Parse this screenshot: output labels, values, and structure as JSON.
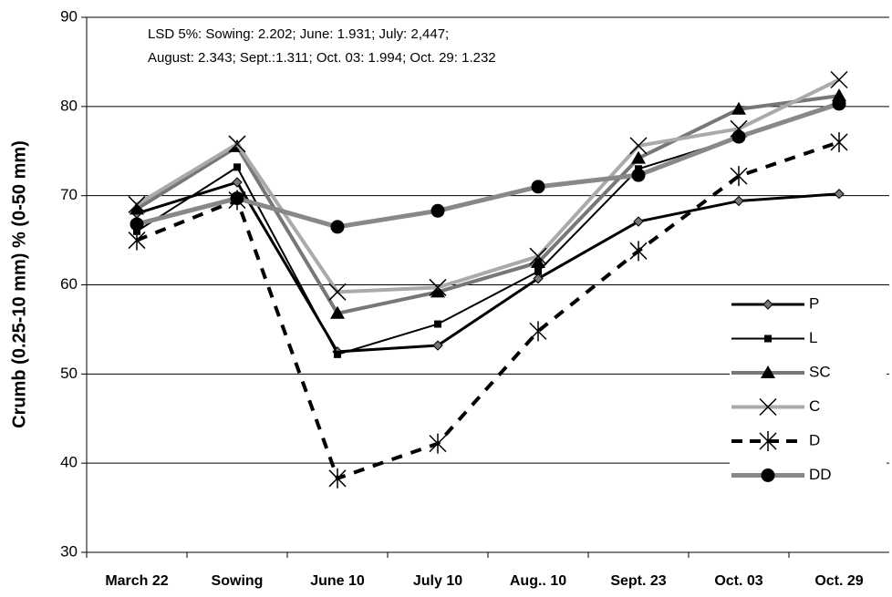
{
  "chart_data": {
    "type": "line",
    "annotation": [
      "LSD 5%:  Sowing: 2.202; June: 1.931; July: 2,447;",
      "August: 2.343; Sept.:1.311; Oct. 03: 1.994; Oct. 29: 1.232"
    ],
    "ylabel": "Crumb (0.25-10 mm) % (0-50 mm)",
    "categories": [
      "March 22",
      "Sowing",
      "June 10",
      "July 10",
      "Aug.. 10",
      "Sept. 23",
      "Oct. 03",
      "Oct. 29"
    ],
    "ylim": [
      30,
      90
    ],
    "yticks": [
      30,
      40,
      50,
      60,
      70,
      80,
      90
    ],
    "grid": true,
    "legend": "right",
    "series": [
      {
        "name": "P",
        "color": "#000000",
        "width": 3,
        "dash": "none",
        "marker": "diamond",
        "values": [
          68,
          71.5,
          52.5,
          53.2,
          60.7,
          67.1,
          69.4,
          70.2
        ]
      },
      {
        "name": "L",
        "color": "#000000",
        "width": 2,
        "dash": "none",
        "marker": "square",
        "values": [
          66,
          73.2,
          52.2,
          55.6,
          61.5,
          73,
          76.5,
          80.5
        ]
      },
      {
        "name": "SC",
        "color": "#777777",
        "width": 4,
        "dash": "none",
        "marker": "triangle",
        "values": [
          68.5,
          75.5,
          56.8,
          59.2,
          62.5,
          74.2,
          79.7,
          81.2
        ]
      },
      {
        "name": "C",
        "color": "#aaaaaa",
        "width": 4,
        "dash": "none",
        "marker": "x",
        "values": [
          69,
          75.8,
          59.2,
          59.7,
          63.2,
          75.6,
          77.5,
          83
        ]
      },
      {
        "name": "D",
        "color": "#000000",
        "width": 4,
        "dash": "12 10",
        "marker": "star",
        "values": [
          65,
          69.5,
          38.3,
          42.2,
          54.8,
          63.8,
          72.2,
          76
        ]
      },
      {
        "name": "DD",
        "color": "#888888",
        "width": 5,
        "dash": "none",
        "marker": "circle",
        "values": [
          66.8,
          69.7,
          66.5,
          68.3,
          71,
          72.3,
          76.6,
          80.3
        ]
      }
    ]
  }
}
